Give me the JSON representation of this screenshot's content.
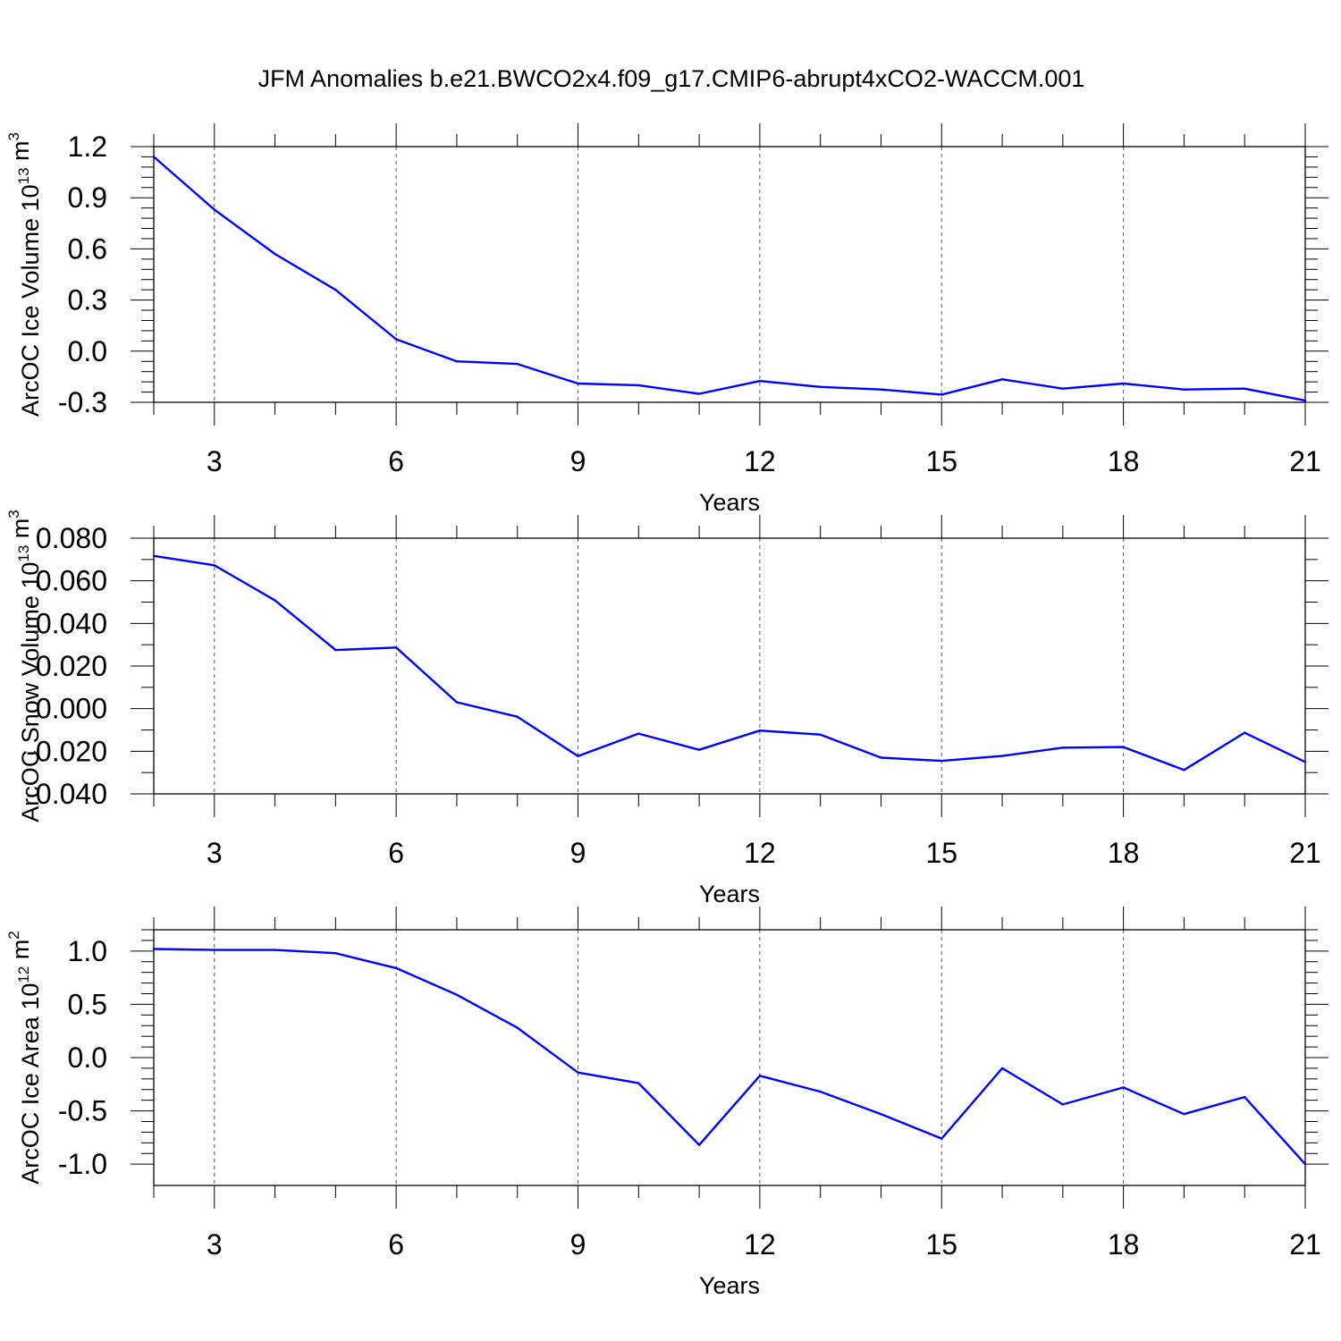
{
  "figure_title": "JFM Anomalies b.e21.BWCO2x4.f09_g17.CMIP6-abrupt4xCO2-WACCM.001",
  "line_color": "#0000ff",
  "chart_data": [
    {
      "type": "line",
      "xlabel": "Years",
      "ylabel": {
        "base": "ArcOC Ice Volume 10",
        "exp": "13",
        "mid": " m",
        "unit_exp": "3"
      },
      "xlim": [
        2,
        21
      ],
      "ylim": [
        -0.3,
        1.2
      ],
      "xticks": [
        3,
        6,
        9,
        12,
        15,
        18,
        21
      ],
      "yticks": [
        "-0.3",
        "0.0",
        "0.3",
        "0.6",
        "0.9",
        "1.2"
      ],
      "grid_x": true,
      "x": [
        2,
        3,
        4,
        5,
        6,
        7,
        8,
        9,
        10,
        11,
        12,
        13,
        14,
        15,
        16,
        17,
        18,
        19,
        20,
        21
      ],
      "y": [
        1.14,
        0.83,
        0.57,
        0.36,
        0.07,
        -0.06,
        -0.075,
        -0.19,
        -0.2,
        -0.25,
        -0.175,
        -0.21,
        -0.225,
        -0.255,
        -0.165,
        -0.22,
        -0.19,
        -0.225,
        -0.22,
        -0.29
      ]
    },
    {
      "type": "line",
      "xlabel": "Years",
      "ylabel": {
        "base": "ArcOC Snow Volume 10",
        "exp": "13",
        "mid": " m",
        "unit_exp": "3"
      },
      "xlim": [
        2,
        21
      ],
      "ylim": [
        -0.04,
        0.08
      ],
      "xticks": [
        3,
        6,
        9,
        12,
        15,
        18,
        21
      ],
      "yticks": [
        "-0.040",
        "-0.020",
        "0.000",
        "0.020",
        "0.040",
        "0.060",
        "0.080"
      ],
      "grid_x": true,
      "x": [
        2,
        3,
        4,
        5,
        6,
        7,
        8,
        9,
        10,
        11,
        12,
        13,
        14,
        15,
        16,
        17,
        18,
        19,
        20,
        21
      ],
      "y": [
        0.0717,
        0.0673,
        0.0508,
        0.0275,
        0.0287,
        0.003,
        -0.0038,
        -0.0223,
        -0.0117,
        -0.0193,
        -0.0103,
        -0.0122,
        -0.023,
        -0.0245,
        -0.0222,
        -0.0183,
        -0.018,
        -0.0288,
        -0.0113,
        -0.025
      ]
    },
    {
      "type": "line",
      "xlabel": "Years",
      "ylabel": {
        "base": "ArcOC Ice Area 10",
        "exp": "12",
        "mid": " m",
        "unit_exp": "2"
      },
      "xlim": [
        2,
        21
      ],
      "ylim": [
        -1.2,
        1.2
      ],
      "xticks": [
        3,
        6,
        9,
        12,
        15,
        18,
        21
      ],
      "yticks": [
        "-1.0",
        "-0.5",
        "0.0",
        "0.5",
        "1.0"
      ],
      "grid_x": true,
      "x": [
        2,
        3,
        4,
        5,
        6,
        7,
        8,
        9,
        10,
        11,
        12,
        13,
        14,
        15,
        16,
        17,
        18,
        19,
        20,
        21
      ],
      "y": [
        1.02,
        1.01,
        1.01,
        0.98,
        0.84,
        0.59,
        0.28,
        -0.14,
        -0.24,
        -0.82,
        -0.17,
        -0.32,
        -0.53,
        -0.76,
        -0.1,
        -0.44,
        -0.28,
        -0.53,
        -0.37,
        -1.0
      ]
    }
  ]
}
